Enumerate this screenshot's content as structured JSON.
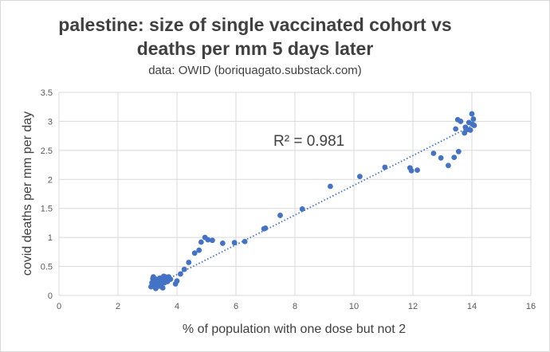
{
  "chart_data": {
    "type": "scatter",
    "title_line1": "palestine: size of single vaccinated cohort vs",
    "title_line2": "deaths per mm 5 days later",
    "subtitle": "data: OWID (boriquagato.substack.com)",
    "xlabel": "% of population with one dose but not 2",
    "ylabel": "covid deaths per mm per day",
    "xlim": [
      0,
      16
    ],
    "ylim": [
      0,
      3.5
    ],
    "x_ticks": [
      "0",
      "2",
      "4",
      "6",
      "8",
      "10",
      "12",
      "14",
      "16"
    ],
    "y_ticks": [
      "0",
      "0.5",
      "1",
      "1.5",
      "2",
      "2.5",
      "3",
      "3.5"
    ],
    "grid": true,
    "trendline": {
      "type": "linear",
      "style": "dotted",
      "x_start": 3.1,
      "x_end": 14.1,
      "y_start": 0.13,
      "y_end": 2.95
    },
    "r_squared_label": "R² = 0.981",
    "marker_color": "#4472c4",
    "series": [
      {
        "name": "Palestine",
        "points": [
          [
            3.12,
            0.15
          ],
          [
            3.15,
            0.22
          ],
          [
            3.18,
            0.29
          ],
          [
            3.2,
            0.32
          ],
          [
            3.22,
            0.18
          ],
          [
            3.25,
            0.25
          ],
          [
            3.28,
            0.12
          ],
          [
            3.3,
            0.28
          ],
          [
            3.32,
            0.2
          ],
          [
            3.35,
            0.27
          ],
          [
            3.38,
            0.23
          ],
          [
            3.4,
            0.16
          ],
          [
            3.42,
            0.3
          ],
          [
            3.45,
            0.25
          ],
          [
            3.48,
            0.21
          ],
          [
            3.5,
            0.28
          ],
          [
            3.52,
            0.13
          ],
          [
            3.55,
            0.33
          ],
          [
            3.58,
            0.22
          ],
          [
            3.6,
            0.32
          ],
          [
            3.62,
            0.27
          ],
          [
            3.65,
            0.3
          ],
          [
            3.68,
            0.24
          ],
          [
            3.72,
            0.32
          ],
          [
            3.78,
            0.28
          ],
          [
            3.95,
            0.2
          ],
          [
            4.0,
            0.25
          ],
          [
            4.12,
            0.37
          ],
          [
            4.25,
            0.45
          ],
          [
            4.4,
            0.57
          ],
          [
            4.6,
            0.73
          ],
          [
            4.75,
            0.78
          ],
          [
            4.82,
            0.92
          ],
          [
            4.95,
            1.0
          ],
          [
            5.05,
            0.96
          ],
          [
            5.2,
            0.95
          ],
          [
            5.55,
            0.9
          ],
          [
            5.95,
            0.91
          ],
          [
            6.3,
            0.93
          ],
          [
            6.95,
            1.15
          ],
          [
            7.0,
            1.16
          ],
          [
            7.5,
            1.38
          ],
          [
            8.25,
            1.49
          ],
          [
            9.2,
            1.88
          ],
          [
            10.2,
            2.05
          ],
          [
            11.05,
            2.21
          ],
          [
            11.9,
            2.2
          ],
          [
            11.95,
            2.15
          ],
          [
            12.15,
            2.16
          ],
          [
            12.7,
            2.45
          ],
          [
            12.95,
            2.37
          ],
          [
            13.2,
            2.24
          ],
          [
            13.4,
            2.38
          ],
          [
            13.45,
            2.87
          ],
          [
            13.52,
            3.03
          ],
          [
            13.55,
            2.48
          ],
          [
            13.62,
            3.0
          ],
          [
            13.75,
            2.8
          ],
          [
            13.78,
            2.9
          ],
          [
            13.85,
            2.86
          ],
          [
            13.9,
            2.98
          ],
          [
            13.95,
            2.85
          ],
          [
            14.0,
            3.13
          ],
          [
            14.02,
            2.95
          ],
          [
            14.05,
            3.04
          ],
          [
            14.08,
            2.93
          ]
        ]
      }
    ]
  }
}
